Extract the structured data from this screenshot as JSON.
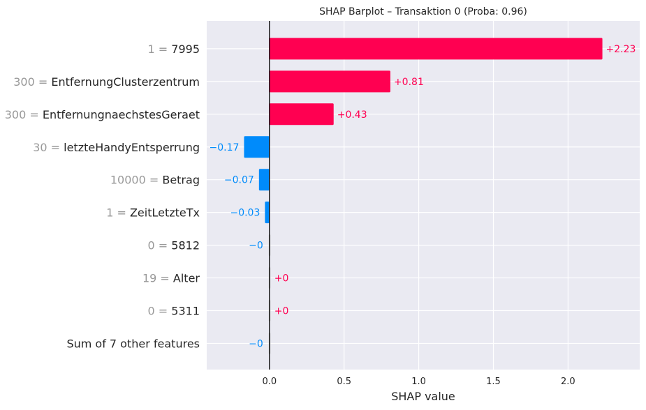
{
  "chart_data": {
    "type": "bar",
    "orientation": "horizontal",
    "title": "SHAP Barplot – Transaktion 0 (Proba: 0.96)",
    "xlabel": "SHAP value",
    "ylabel": "",
    "xlim": [
      -0.42,
      2.48
    ],
    "xticks": [
      "0.0",
      "0.5",
      "1.0",
      "1.5",
      "2.0"
    ],
    "xtick_values": [
      0,
      0.5,
      1.0,
      1.5,
      2.0
    ],
    "grid": true,
    "colors": {
      "positive": "#ff0051",
      "negative": "#008bfb",
      "zero": "#cccccc",
      "background": "#eaeaf2"
    },
    "features": [
      {
        "value": "1",
        "name": "7995",
        "shap": 2.23,
        "label": "+2.23"
      },
      {
        "value": "300",
        "name": "EntfernungClusterzentrum",
        "shap": 0.81,
        "label": "+0.81"
      },
      {
        "value": "300",
        "name": "EntfernungnaechstesGeraet",
        "shap": 0.43,
        "label": "+0.43"
      },
      {
        "value": "30",
        "name": "letzteHandyEntsperrung",
        "shap": -0.17,
        "label": "−0.17"
      },
      {
        "value": "10000",
        "name": "Betrag",
        "shap": -0.07,
        "label": "−0.07"
      },
      {
        "value": "1",
        "name": "ZeitLetzteTx",
        "shap": -0.03,
        "label": "−0.03"
      },
      {
        "value": "0",
        "name": "5812",
        "shap": -0.002,
        "label": "−0"
      },
      {
        "value": "19",
        "name": "Alter",
        "shap": 0.002,
        "label": "+0"
      },
      {
        "value": "0",
        "name": "5311",
        "shap": 0.002,
        "label": "+0"
      },
      {
        "value": "",
        "name": "Sum of 7 other features",
        "shap": -0.002,
        "label": "−0"
      }
    ]
  }
}
